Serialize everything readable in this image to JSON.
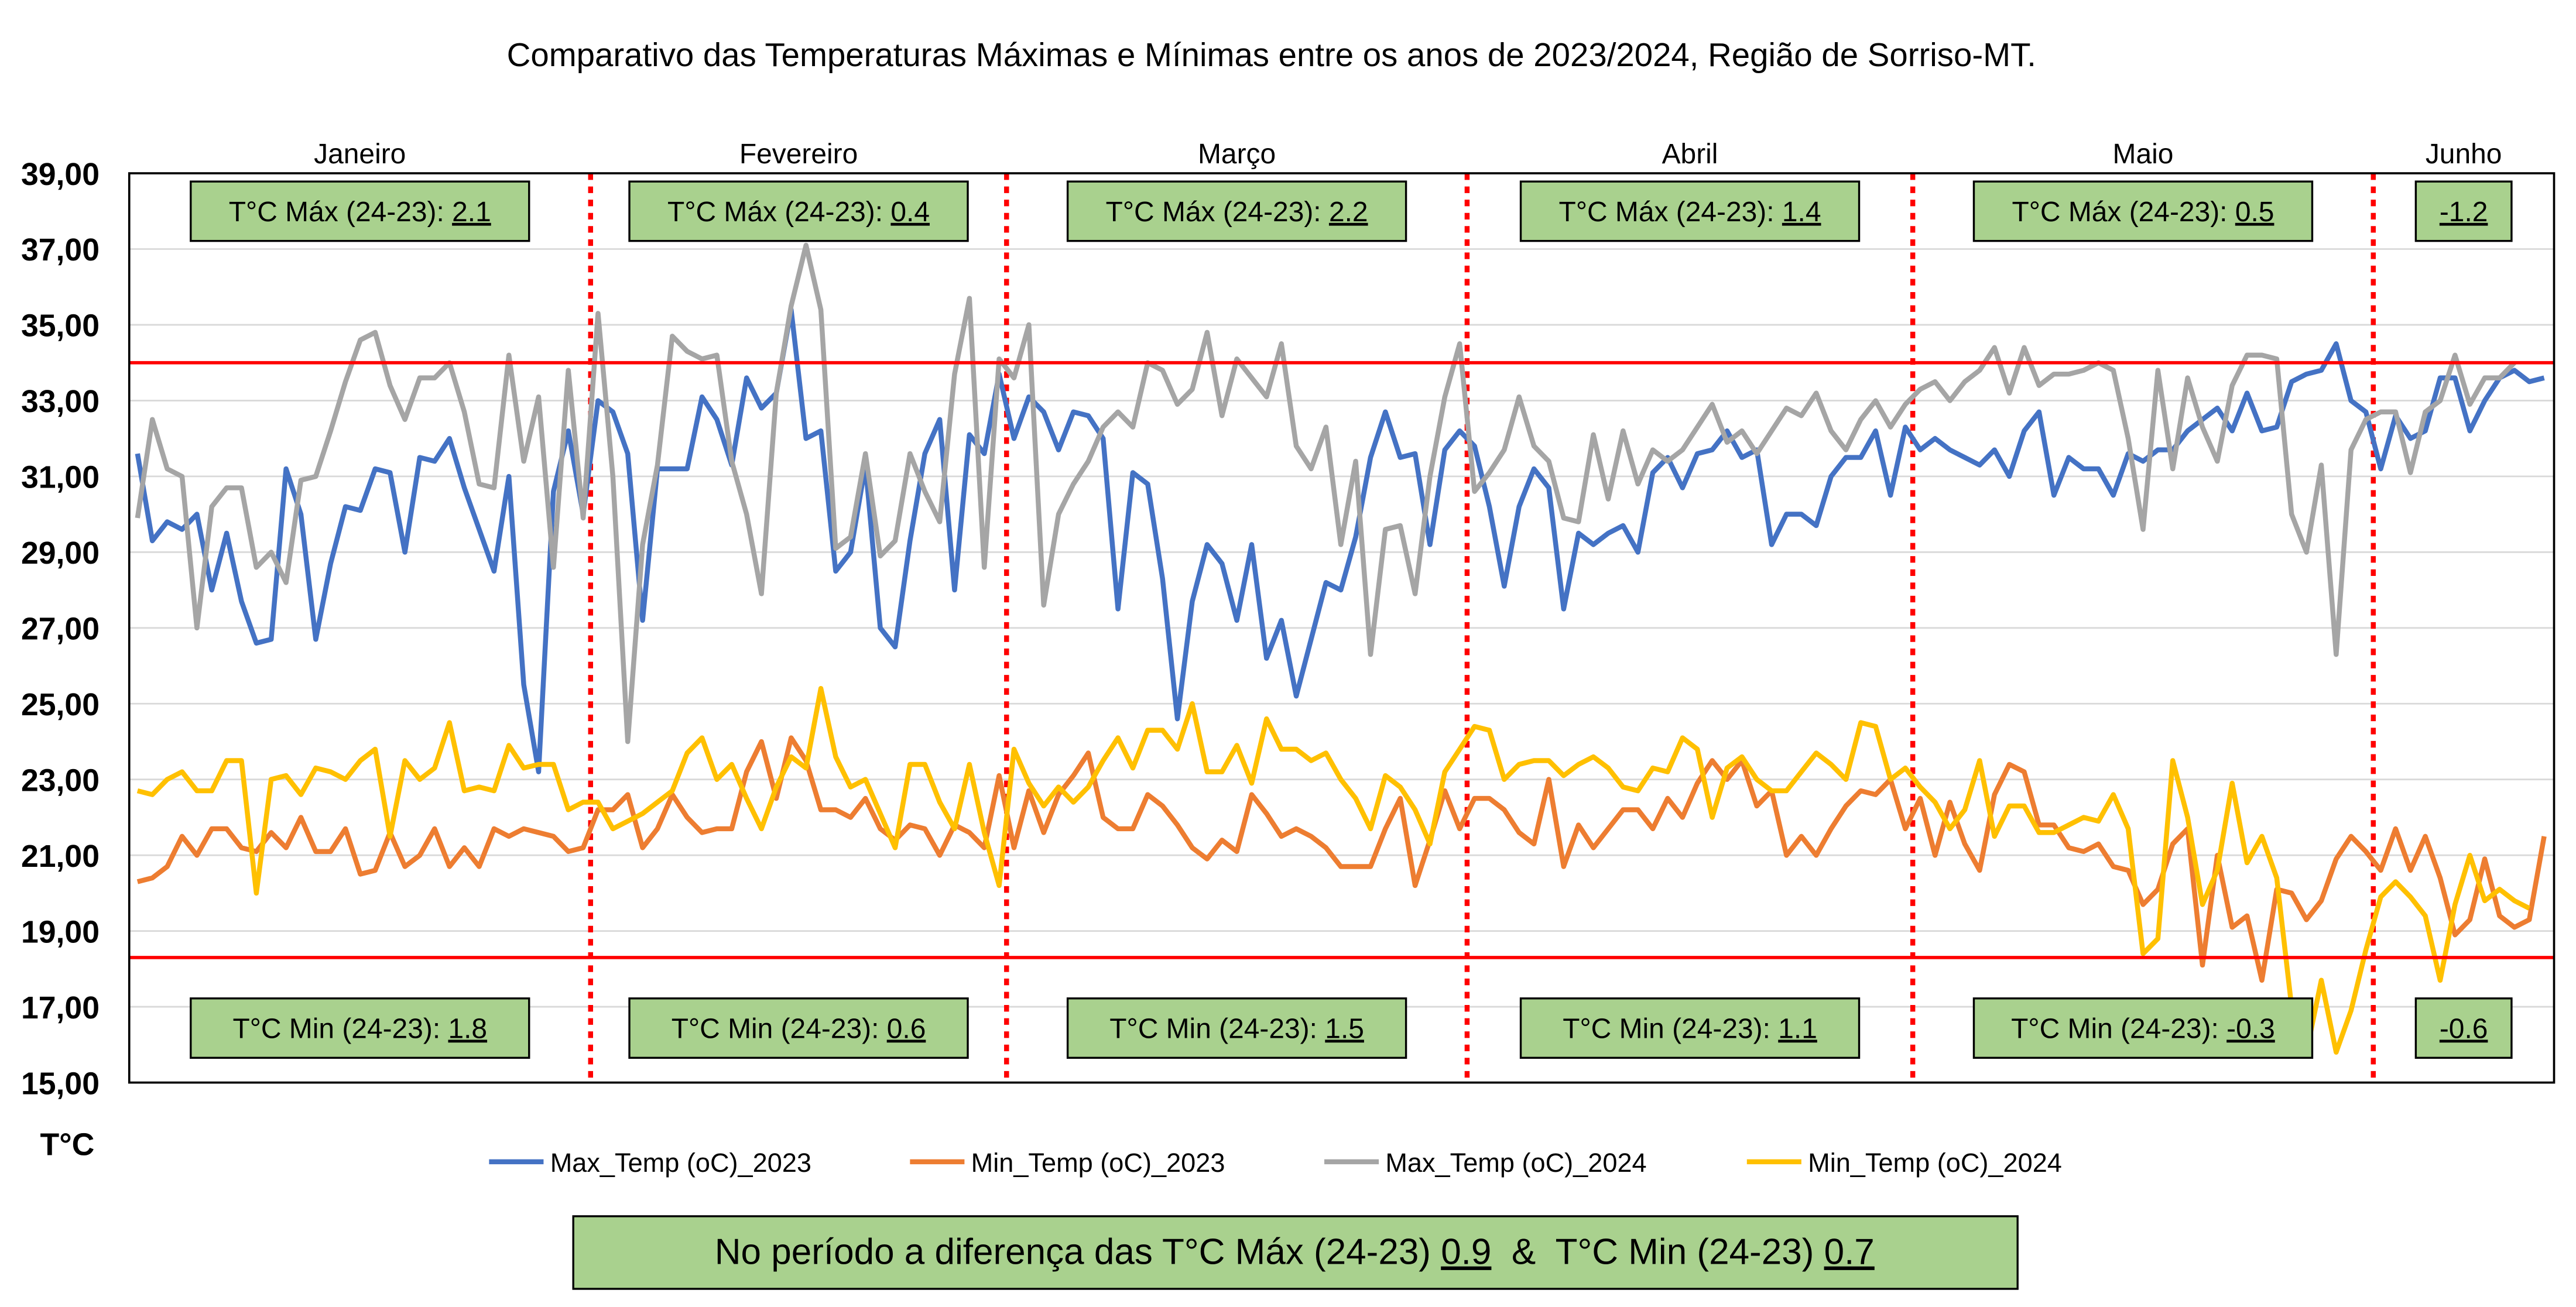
{
  "chart_data": {
    "type": "line",
    "title": "Comparativo das Temperaturas Máximas e Mínimas entre os anos de 2023/2024, Região de Sorriso-MT.",
    "ylabel": "T°C",
    "ylim": [
      15,
      39
    ],
    "yticks": [
      "15,00",
      "17,00",
      "19,00",
      "21,00",
      "23,00",
      "25,00",
      "27,00",
      "29,00",
      "31,00",
      "33,00",
      "35,00",
      "37,00",
      "39,00"
    ],
    "grid": true,
    "legend_position": "bottom",
    "reference_lines": [
      34.0,
      18.3
    ],
    "months": [
      {
        "name": "Janeiro",
        "days": 31,
        "max_label": "T°C Máx (24-23): ",
        "max_diff": "2.1",
        "min_label": "T°C Min (24-23): ",
        "min_diff": "1.8"
      },
      {
        "name": "Fevereiro",
        "days": 28,
        "max_label": "T°C Máx (24-23): ",
        "max_diff": "0.4",
        "min_label": "T°C Min (24-23): ",
        "min_diff": "0.6"
      },
      {
        "name": "Março",
        "days": 31,
        "max_label": "T°C Máx (24-23): ",
        "max_diff": "2.2",
        "min_label": "T°C Min (24-23): ",
        "min_diff": "1.5"
      },
      {
        "name": "Abril",
        "days": 30,
        "max_label": "T°C Máx (24-23): ",
        "max_diff": "1.4",
        "min_label": "T°C Min (24-23): ",
        "min_diff": "1.1"
      },
      {
        "name": "Maio",
        "days": 31,
        "max_label": "T°C Máx (24-23): ",
        "max_diff": "0.5",
        "min_label": "T°C Min (24-23): ",
        "min_diff": "-0.3"
      },
      {
        "name": "Junho",
        "days": 12,
        "max_label": "",
        "max_diff": "-1.2",
        "min_label": "",
        "min_diff": "-0.6"
      }
    ],
    "summary": {
      "prefix": "No período a diferença das T°C Máx (24-23) ",
      "max": "0.9",
      "mid": "  &  T°C Min (24-23) ",
      "min": "0.7"
    },
    "series": [
      {
        "name": "Max_Temp (oC)_2023",
        "color": "#4472c4",
        "values": [
          31.6,
          29.3,
          29.8,
          29.6,
          30.0,
          28.0,
          29.5,
          27.7,
          26.6,
          26.7,
          31.2,
          30.0,
          26.7,
          28.7,
          30.2,
          30.1,
          31.2,
          31.1,
          29.0,
          31.5,
          31.4,
          32.0,
          30.7,
          29.6,
          28.5,
          31.0,
          25.5,
          23.2,
          30.6,
          32.2,
          30.0,
          33.0,
          32.7,
          31.6,
          27.2,
          31.2,
          31.2,
          31.2,
          33.1,
          32.5,
          31.3,
          33.6,
          32.8,
          33.2,
          35.4,
          32.0,
          32.2,
          28.5,
          29.0,
          31.3,
          27.0,
          26.5,
          29.3,
          31.6,
          32.5,
          28.0,
          32.1,
          31.6,
          33.7,
          32.0,
          33.1,
          32.7,
          31.7,
          32.7,
          32.6,
          32.0,
          27.5,
          31.1,
          30.8,
          28.3,
          24.6,
          27.7,
          29.2,
          28.7,
          27.2,
          29.2,
          26.2,
          27.2,
          25.2,
          26.7,
          28.2,
          28.0,
          29.4,
          31.5,
          32.7,
          31.5,
          31.6,
          29.2,
          31.7,
          32.2,
          31.8,
          30.2,
          28.1,
          30.2,
          31.2,
          30.7,
          27.5,
          29.5,
          29.2,
          29.5,
          29.7,
          29.0,
          31.1,
          31.5,
          30.7,
          31.6,
          31.7,
          32.2,
          31.5,
          31.7,
          29.2,
          30.0,
          30.0,
          29.7,
          31.0,
          31.5,
          31.5,
          32.2,
          30.5,
          32.3,
          31.7,
          32.0,
          31.7,
          31.5,
          31.3,
          31.7,
          31.0,
          32.2,
          32.7,
          30.5,
          31.5,
          31.2,
          31.2,
          30.5,
          31.6,
          31.4,
          31.7,
          31.7,
          32.2,
          32.5,
          32.8,
          32.2,
          33.2,
          32.2,
          32.3,
          33.5,
          33.7,
          33.8,
          34.5,
          33.0,
          32.7,
          31.2,
          32.6,
          32.0,
          32.2,
          33.6,
          33.6,
          32.2,
          33.0,
          33.6,
          33.8,
          33.5,
          33.6
        ]
      },
      {
        "name": "Min_Temp (oC)_2023",
        "color": "#ed7d31",
        "values": [
          20.3,
          20.4,
          20.7,
          21.5,
          21.0,
          21.7,
          21.7,
          21.2,
          21.1,
          21.6,
          21.2,
          22.0,
          21.1,
          21.1,
          21.7,
          20.5,
          20.6,
          21.6,
          20.7,
          21.0,
          21.7,
          20.7,
          21.2,
          20.7,
          21.7,
          21.5,
          21.7,
          21.6,
          21.5,
          21.1,
          21.2,
          22.2,
          22.2,
          22.6,
          21.2,
          21.7,
          22.6,
          22.0,
          21.6,
          21.7,
          21.7,
          23.2,
          24.0,
          22.5,
          24.1,
          23.5,
          22.2,
          22.2,
          22.0,
          22.5,
          21.7,
          21.4,
          21.8,
          21.7,
          21.0,
          21.8,
          21.6,
          21.2,
          23.1,
          21.2,
          22.7,
          21.6,
          22.6,
          23.1,
          23.7,
          22.0,
          21.7,
          21.7,
          22.6,
          22.3,
          21.8,
          21.2,
          20.9,
          21.4,
          21.1,
          22.6,
          22.1,
          21.5,
          21.7,
          21.5,
          21.2,
          20.7,
          20.7,
          20.7,
          21.7,
          22.5,
          20.2,
          21.4,
          22.7,
          21.7,
          22.5,
          22.5,
          22.2,
          21.6,
          21.3,
          23.0,
          20.7,
          21.8,
          21.2,
          21.7,
          22.2,
          22.2,
          21.7,
          22.5,
          22.0,
          22.9,
          23.5,
          23.0,
          23.5,
          22.3,
          22.7,
          21.0,
          21.5,
          21.0,
          21.7,
          22.3,
          22.7,
          22.6,
          23.0,
          21.7,
          22.5,
          21.0,
          22.4,
          21.3,
          20.6,
          22.6,
          23.4,
          23.2,
          21.8,
          21.8,
          21.2,
          21.1,
          21.3,
          20.7,
          20.6,
          19.7,
          20.1,
          21.3,
          21.7,
          18.1,
          21.0,
          19.1,
          19.4,
          17.7,
          20.1,
          20.0,
          19.3,
          19.8,
          20.9,
          21.5,
          21.1,
          20.6,
          21.7,
          20.6,
          21.5,
          20.4,
          18.9,
          19.3,
          20.9,
          19.4,
          19.1,
          19.3,
          21.5
        ]
      },
      {
        "name": "Max_Temp (oC)_2024",
        "color": "#a5a5a5",
        "values": [
          29.9,
          32.5,
          31.2,
          31.0,
          27.0,
          30.2,
          30.7,
          30.7,
          28.6,
          29.0,
          28.2,
          30.9,
          31.0,
          32.2,
          33.5,
          34.6,
          34.8,
          33.4,
          32.5,
          33.6,
          33.6,
          34.0,
          32.7,
          30.8,
          30.7,
          34.2,
          31.4,
          33.1,
          28.6,
          33.8,
          29.9,
          35.3,
          31.0,
          24.0,
          29.2,
          31.3,
          34.7,
          34.3,
          34.1,
          34.2,
          31.4,
          30.0,
          27.9,
          33.2,
          35.5,
          37.1,
          35.4,
          29.1,
          29.4,
          31.6,
          28.9,
          29.3,
          31.6,
          30.6,
          29.8,
          33.7,
          35.7,
          28.6,
          34.1,
          33.6,
          35.0,
          27.6,
          30.0,
          30.8,
          31.4,
          32.3,
          32.7,
          32.3,
          34.0,
          33.8,
          32.9,
          33.3,
          34.8,
          32.6,
          34.1,
          33.6,
          33.1,
          34.5,
          31.8,
          31.2,
          32.3,
          29.2,
          31.4,
          26.3,
          29.6,
          29.7,
          27.9,
          31.0,
          33.1,
          34.5,
          30.6,
          31.1,
          31.7,
          33.1,
          31.8,
          31.4,
          29.9,
          29.8,
          32.1,
          30.4,
          32.2,
          30.8,
          31.7,
          31.4,
          31.7,
          32.3,
          32.9,
          31.9,
          32.2,
          31.6,
          32.2,
          32.8,
          32.6,
          33.2,
          32.2,
          31.7,
          32.5,
          33.0,
          32.3,
          32.9,
          33.3,
          33.5,
          33.0,
          33.5,
          33.8,
          34.4,
          33.2,
          34.4,
          33.4,
          33.7,
          33.7,
          33.8,
          34.0,
          33.8,
          32.0,
          29.6,
          33.8,
          31.2,
          33.6,
          32.3,
          31.4,
          33.4,
          34.2,
          34.2,
          34.1,
          30.0,
          29.0,
          31.3,
          26.3,
          31.7,
          32.5,
          32.7,
          32.7,
          31.1,
          32.7,
          33.0,
          34.2,
          32.9,
          33.6,
          33.6,
          34.0,
          null,
          null
        ]
      },
      {
        "name": "Min_Temp (oC)_2024",
        "color": "#ffc000",
        "values": [
          22.7,
          22.6,
          23.0,
          23.2,
          22.7,
          22.7,
          23.5,
          23.5,
          20.0,
          23.0,
          23.1,
          22.6,
          23.3,
          23.2,
          23.0,
          23.5,
          23.8,
          21.5,
          23.5,
          23.0,
          23.3,
          24.5,
          22.7,
          22.8,
          22.7,
          23.9,
          23.3,
          23.4,
          23.4,
          22.2,
          22.4,
          22.4,
          21.7,
          21.9,
          22.1,
          22.4,
          22.7,
          23.7,
          24.1,
          23.0,
          23.4,
          22.5,
          21.7,
          22.8,
          23.6,
          23.3,
          25.4,
          23.6,
          22.8,
          23.0,
          22.1,
          21.2,
          23.4,
          23.4,
          22.4,
          21.7,
          23.4,
          21.6,
          20.2,
          23.8,
          22.9,
          22.3,
          22.8,
          22.4,
          22.8,
          23.5,
          24.1,
          23.3,
          24.3,
          24.3,
          23.8,
          25.0,
          23.2,
          23.2,
          23.9,
          22.9,
          24.6,
          23.8,
          23.8,
          23.5,
          23.7,
          23.0,
          22.5,
          21.7,
          23.1,
          22.8,
          22.2,
          21.3,
          23.2,
          23.8,
          24.4,
          24.3,
          23.0,
          23.4,
          23.5,
          23.5,
          23.1,
          23.4,
          23.6,
          23.3,
          22.8,
          22.7,
          23.3,
          23.2,
          24.1,
          23.8,
          22.0,
          23.3,
          23.6,
          23.0,
          22.7,
          22.7,
          23.2,
          23.7,
          23.4,
          23.0,
          24.5,
          24.4,
          23.0,
          23.3,
          22.8,
          22.4,
          21.7,
          22.2,
          23.5,
          21.5,
          22.3,
          22.3,
          21.6,
          21.6,
          21.8,
          22.0,
          21.9,
          22.6,
          21.7,
          18.4,
          18.8,
          23.5,
          22.0,
          19.7,
          20.6,
          22.9,
          20.8,
          21.5,
          20.4,
          17.0,
          15.8,
          17.7,
          15.8,
          16.9,
          18.5,
          19.9,
          20.3,
          19.9,
          19.4,
          17.7,
          19.7,
          21.0,
          19.8,
          20.1,
          19.8,
          19.6,
          null
        ]
      }
    ]
  }
}
